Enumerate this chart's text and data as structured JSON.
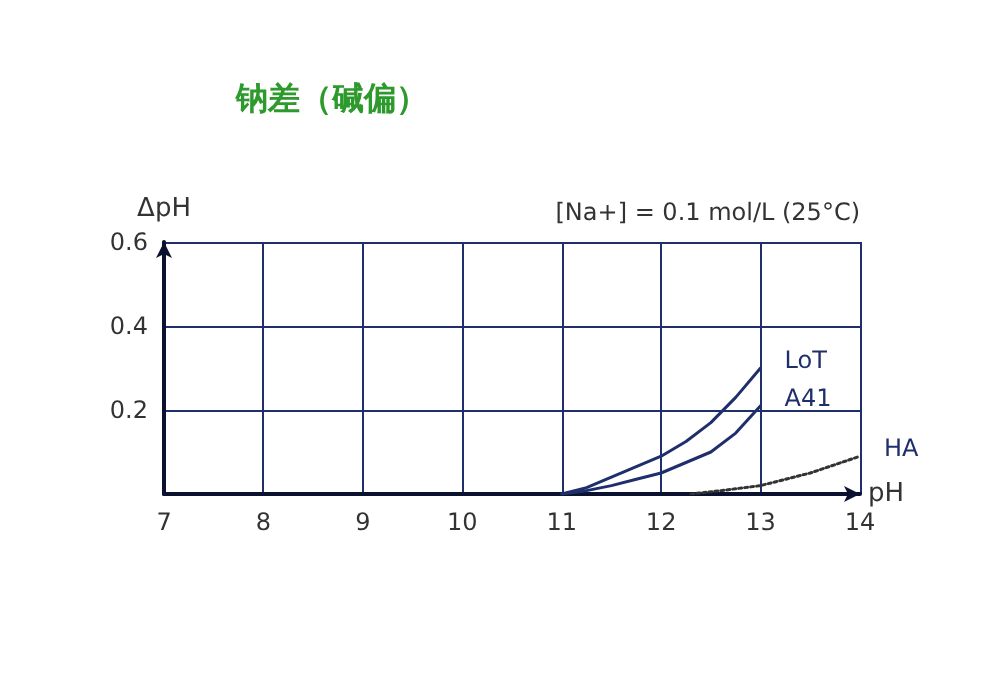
{
  "chart_data": {
    "type": "line",
    "title": "钠差（碱偏）",
    "xlabel": "pH",
    "ylabel": "ΔpH",
    "annotations": [
      "[Na+] = 0.1 mol/L (25°C)"
    ],
    "xlim": [
      7,
      14
    ],
    "xticks": [
      7,
      8,
      9,
      10,
      11,
      12,
      13,
      14
    ],
    "ylim": [
      0,
      0.6
    ],
    "yticks": [
      {
        "value": 0,
        "label": null
      },
      0.2,
      0.4,
      0.6
    ],
    "grid": true,
    "marker": "none",
    "line_style": "solid",
    "legend": false,
    "series": [
      {
        "name": "LoT",
        "color": "#1f2f6b",
        "x": [
          11,
          11.25,
          11.5,
          11.75,
          12,
          12.25,
          12.5,
          12.75,
          13
        ],
        "values": [
          0,
          0.015,
          0.04,
          0.065,
          0.09,
          0.125,
          0.17,
          0.23,
          0.3
        ]
      },
      {
        "name": "A41",
        "color": "#1f2f6b",
        "x": [
          11,
          11.25,
          11.5,
          11.75,
          12,
          12.25,
          12.5,
          12.75,
          13
        ],
        "values": [
          0,
          0.008,
          0.02,
          0.035,
          0.05,
          0.075,
          0.1,
          0.145,
          0.21
        ]
      },
      {
        "name": "HA",
        "color": "#333333",
        "line_style": "dotted",
        "x": [
          12.3,
          12.6,
          13,
          13.5,
          14
        ],
        "values": [
          0,
          0.008,
          0.02,
          0.05,
          0.09
        ]
      }
    ]
  }
}
